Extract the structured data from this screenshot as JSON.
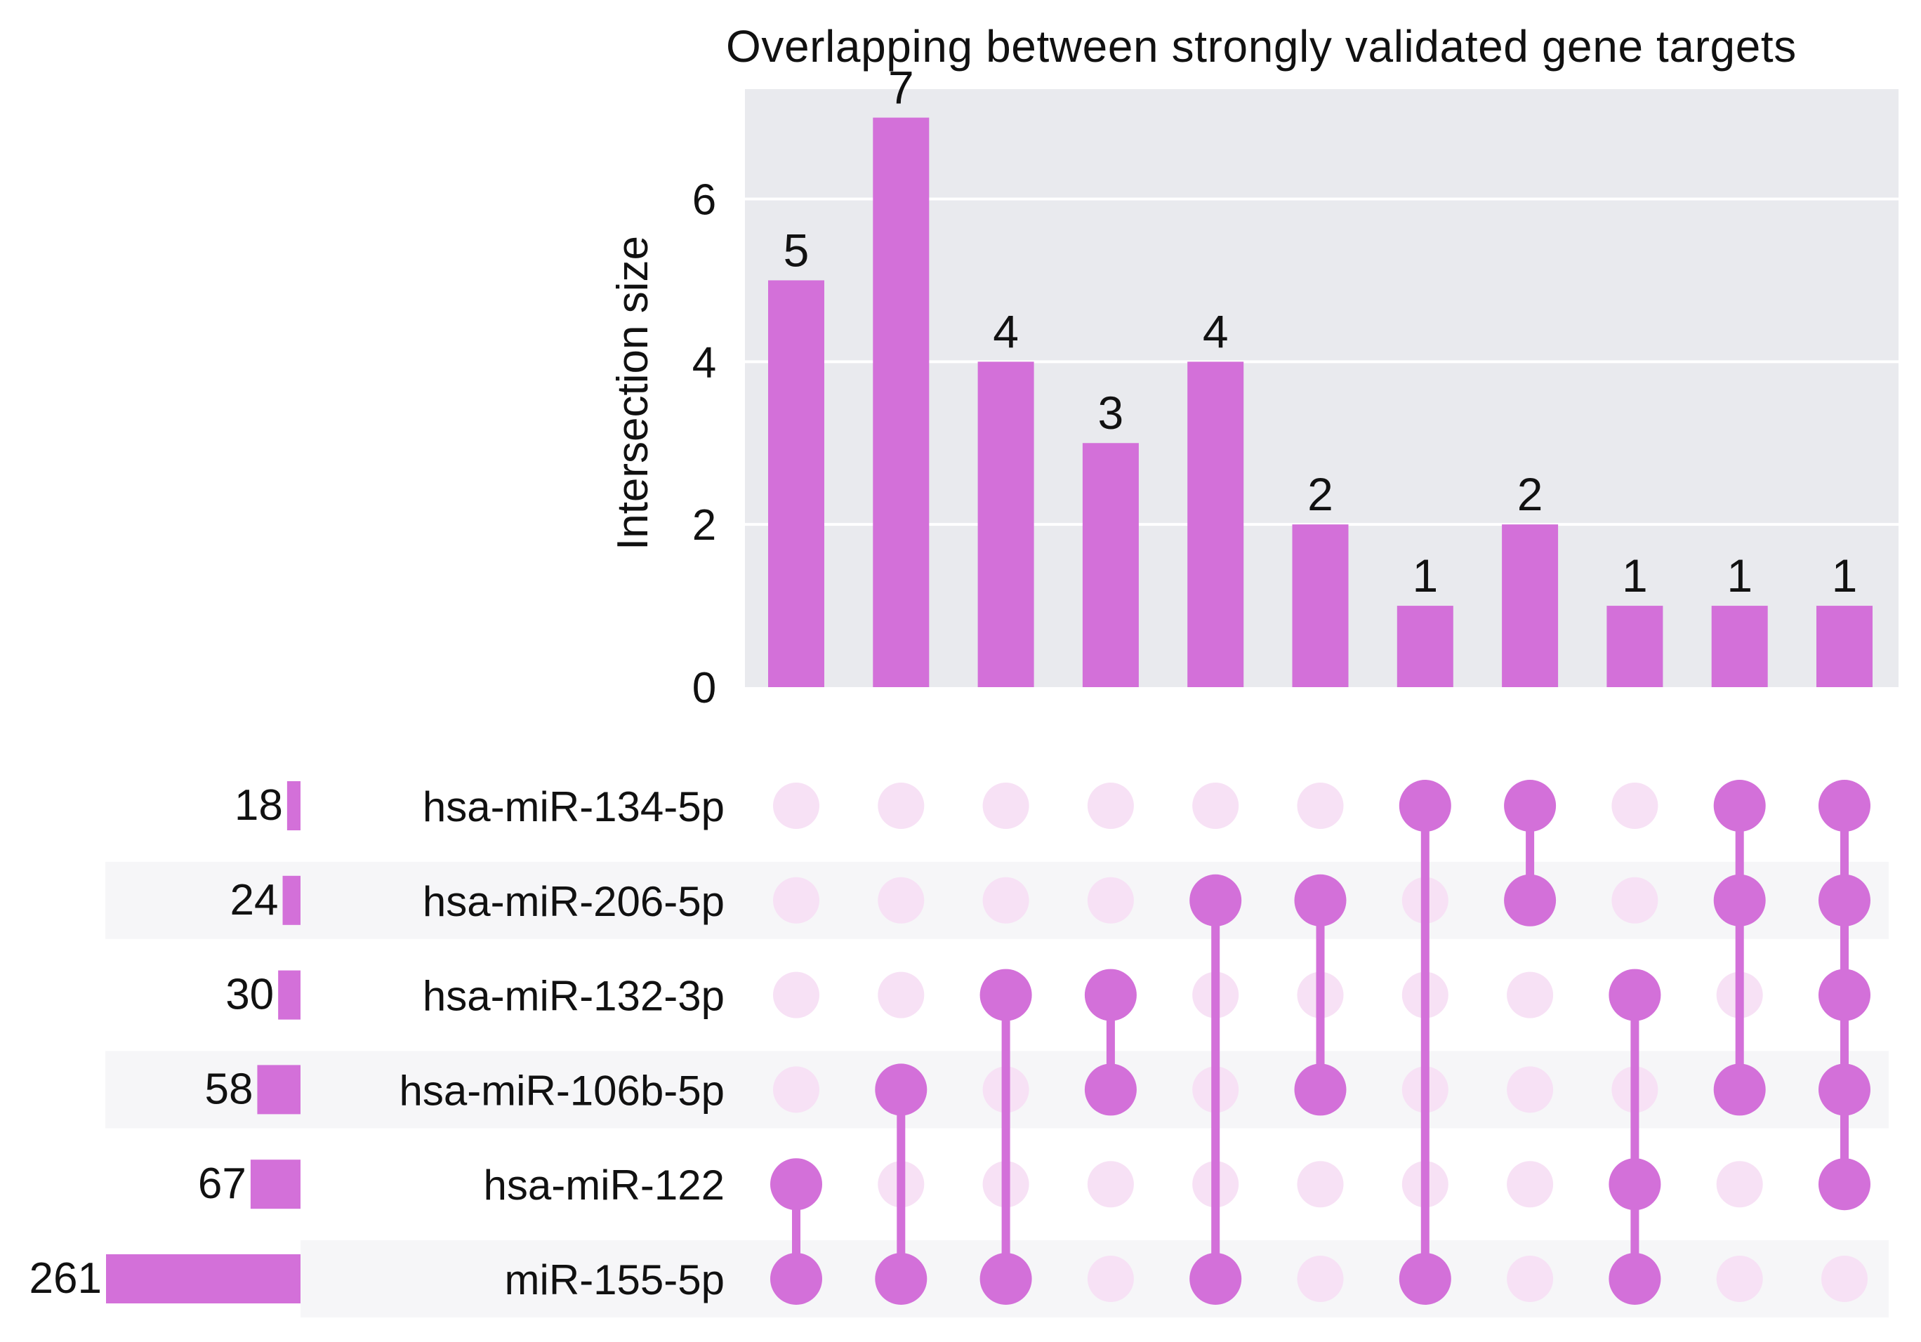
{
  "chart_data": {
    "type": "bar",
    "subtype": "upset",
    "title": "Overlapping between strongly validated gene targets",
    "ylabel": "Intersection size",
    "xlabel": "",
    "ylim": [
      0,
      7.35
    ],
    "yticks": [
      0,
      2,
      4,
      6
    ],
    "grid": true,
    "sets": [
      {
        "name": "hsa-miR-134-5p",
        "size": 18
      },
      {
        "name": "hsa-miR-206-5p",
        "size": 24
      },
      {
        "name": "hsa-miR-132-3p",
        "size": 30
      },
      {
        "name": "hsa-miR-106b-5p",
        "size": 58
      },
      {
        "name": "hsa-miR-122",
        "size": 67
      },
      {
        "name": "miR-155-5p",
        "size": 261
      }
    ],
    "set_size_max": 261,
    "intersections": [
      {
        "value": 5,
        "members": [
          "hsa-miR-122",
          "miR-155-5p"
        ]
      },
      {
        "value": 7,
        "members": [
          "hsa-miR-106b-5p",
          "miR-155-5p"
        ]
      },
      {
        "value": 4,
        "members": [
          "hsa-miR-132-3p",
          "miR-155-5p"
        ]
      },
      {
        "value": 3,
        "members": [
          "hsa-miR-132-3p",
          "hsa-miR-106b-5p"
        ]
      },
      {
        "value": 4,
        "members": [
          "hsa-miR-206-5p",
          "miR-155-5p"
        ]
      },
      {
        "value": 2,
        "members": [
          "hsa-miR-206-5p",
          "hsa-miR-106b-5p"
        ]
      },
      {
        "value": 1,
        "members": [
          "hsa-miR-134-5p",
          "miR-155-5p"
        ]
      },
      {
        "value": 2,
        "members": [
          "hsa-miR-134-5p",
          "hsa-miR-206-5p"
        ]
      },
      {
        "value": 1,
        "members": [
          "hsa-miR-132-3p",
          "hsa-miR-122",
          "miR-155-5p"
        ]
      },
      {
        "value": 1,
        "members": [
          "hsa-miR-134-5p",
          "hsa-miR-206-5p",
          "hsa-miR-106b-5p"
        ]
      },
      {
        "value": 1,
        "members": [
          "hsa-miR-134-5p",
          "hsa-miR-206-5p",
          "hsa-miR-132-3p",
          "hsa-miR-106b-5p",
          "hsa-miR-122"
        ]
      }
    ],
    "colors": {
      "bar": "#d370d9",
      "dot_active": "#d370d9",
      "dot_inactive": "#f7e1f5",
      "plot_background": "#e9eaee",
      "gridline": "#ffffff",
      "row_stripe": "#f6f6f8"
    }
  }
}
